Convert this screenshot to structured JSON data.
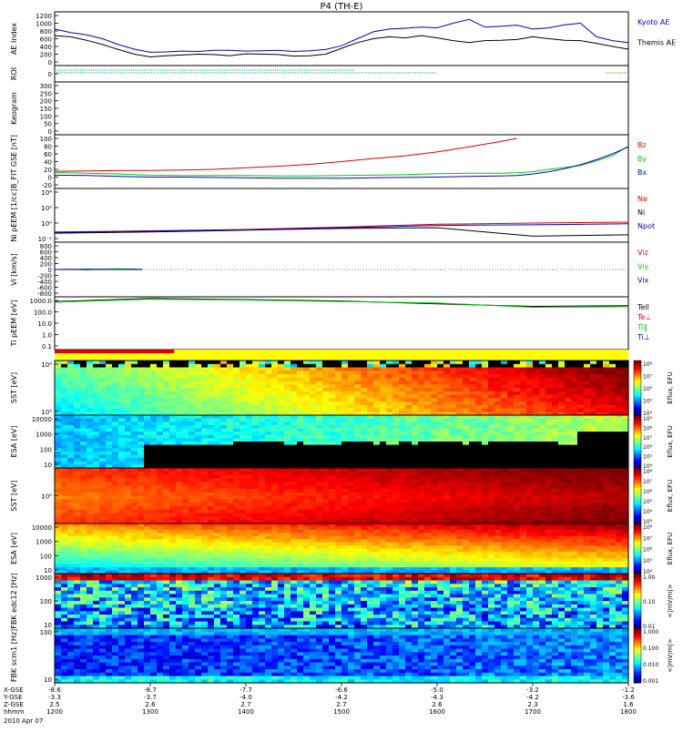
{
  "title": "P4 (TH-E)",
  "footer": {
    "rows": [
      {
        "label": "X-GSE",
        "values": [
          "-8.6",
          "-8.7",
          "-7.7",
          "-6.6",
          "-5.0",
          "-3.2",
          "-1.2"
        ]
      },
      {
        "label": "Y-GSE",
        "values": [
          "-3.3",
          "-3.7",
          "-4.0",
          "-4.2",
          "-4.3",
          "-4.2",
          "-3.6"
        ]
      },
      {
        "label": "Z-GSE",
        "values": [
          "2.5",
          "2.6",
          "2.7",
          "2.7",
          "2.6",
          "2.3",
          "1.6"
        ]
      },
      {
        "label": "hhmm",
        "values": [
          "1200",
          "1300",
          "1400",
          "1500",
          "1600",
          "1700",
          "1800"
        ]
      }
    ],
    "date": "2010 Apr 07"
  },
  "colors": {
    "kyoto": "#0000cc",
    "themis": "#000000",
    "red": "#dd0000",
    "green": "#00cc00",
    "blue": "#0000cc",
    "bar_red": "#dd0000",
    "bar_yellow": "#ffff00"
  },
  "chart_data": [
    {
      "type": "line",
      "id": "ae",
      "ylabel": "AE Index",
      "ylim": [
        0,
        1200
      ],
      "yticks": [
        "0",
        "200",
        "400",
        "600",
        "800",
        "1000",
        "1200"
      ],
      "x": [
        1200,
        1210,
        1220,
        1230,
        1240,
        1250,
        1300,
        1310,
        1320,
        1330,
        1340,
        1350,
        1400,
        1410,
        1420,
        1430,
        1440,
        1450,
        1500,
        1510,
        1520,
        1530,
        1540,
        1550,
        1600,
        1610,
        1620,
        1630,
        1640,
        1650,
        1700,
        1710,
        1720,
        1730,
        1740,
        1750,
        1800
      ],
      "series": [
        {
          "name": "Kyoto AE",
          "color": "#0000cc",
          "values": [
            850,
            760,
            700,
            600,
            450,
            330,
            250,
            260,
            280,
            270,
            300,
            300,
            280,
            290,
            300,
            270,
            290,
            320,
            420,
            600,
            780,
            850,
            870,
            900,
            880,
            1000,
            1100,
            900,
            920,
            950,
            850,
            880,
            960,
            1000,
            650,
            550,
            500
          ]
        },
        {
          "name": "Themis AE",
          "color": "#000000",
          "values": [
            680,
            650,
            560,
            450,
            320,
            200,
            130,
            160,
            180,
            200,
            190,
            160,
            210,
            200,
            190,
            150,
            160,
            200,
            350,
            500,
            600,
            650,
            620,
            680,
            620,
            550,
            500,
            550,
            560,
            580,
            650,
            600,
            560,
            550,
            480,
            400,
            330
          ]
        }
      ]
    },
    {
      "type": "line",
      "id": "roi",
      "ylabel": "ROI",
      "yticks": [
        "0"
      ]
    },
    {
      "type": "line",
      "id": "keogram",
      "ylabel": "Keogram",
      "ylim": [
        0,
        300
      ],
      "yticks": [
        "0",
        "50",
        "100",
        "150",
        "200",
        "250",
        "300"
      ]
    },
    {
      "type": "line",
      "id": "bfield",
      "ylabel": "B_FIT GSE [nT]",
      "ylim": [
        -20,
        100
      ],
      "yticks": [
        "-20",
        "0",
        "20",
        "40",
        "60",
        "80",
        "100"
      ],
      "x": [
        1200,
        1220,
        1240,
        1300,
        1320,
        1340,
        1400,
        1420,
        1440,
        1500,
        1520,
        1540,
        1600,
        1620,
        1640,
        1650,
        1700,
        1710,
        1720,
        1730,
        1740,
        1750,
        1800
      ],
      "series": [
        {
          "name": "Bz",
          "color": "#dd0000",
          "values": [
            15,
            16,
            17,
            17,
            18,
            20,
            24,
            28,
            33,
            40,
            48,
            55,
            65,
            78,
            92,
            100,
            null,
            null,
            null,
            null,
            null,
            null,
            null
          ]
        },
        {
          "name": "By",
          "color": "#00cc00",
          "values": [
            12,
            10,
            8,
            5,
            4,
            4,
            4,
            3,
            3,
            4,
            5,
            6,
            9,
            10,
            10,
            11,
            14,
            20,
            25,
            30,
            42,
            55,
            80
          ]
        },
        {
          "name": "Bx",
          "color": "#0000cc",
          "values": [
            5,
            4,
            2,
            0,
            0,
            -1,
            -2,
            -3,
            -3,
            -3,
            -2,
            -1,
            0,
            2,
            3,
            4,
            8,
            14,
            22,
            32,
            45,
            60,
            78
          ]
        }
      ]
    },
    {
      "type": "line",
      "id": "density",
      "ylabel": "Ni pEEM [1/cc]",
      "ylog": true,
      "yticks": [
        "10⁻²",
        "10⁰",
        "10²",
        "10⁴"
      ],
      "x": [
        1200,
        1300,
        1400,
        1500,
        1600,
        1700,
        1800
      ],
      "series": [
        {
          "name": "Ne",
          "color": "#dd0000",
          "values": [
            0.07,
            0.1,
            0.15,
            0.3,
            0.7,
            1.0,
            1.3
          ]
        },
        {
          "name": "Ni",
          "color": "#000000",
          "values": [
            0.05,
            0.07,
            0.12,
            0.2,
            0.25,
            0.02,
            0.03
          ]
        },
        {
          "name": "Npot",
          "color": "#0000cc",
          "values": [
            0.06,
            0.09,
            0.13,
            0.25,
            0.5,
            0.6,
            0.8
          ]
        }
      ]
    },
    {
      "type": "line",
      "id": "velocity",
      "ylabel": "Vi [km/s]",
      "ylim": [
        -800,
        800
      ],
      "yticks": [
        "-800",
        "-600",
        "-400",
        "-200",
        "0",
        "200",
        "400",
        "600",
        "800"
      ],
      "x": [
        1200,
        1210,
        1220,
        1230,
        1240,
        1250,
        1255
      ],
      "series": [
        {
          "name": "Viz",
          "color": "#dd0000",
          "values": [
            0,
            5,
            -5,
            10,
            0,
            5,
            0
          ]
        },
        {
          "name": "Viy",
          "color": "#00cc00",
          "values": [
            0,
            10,
            20,
            15,
            25,
            20,
            10
          ]
        },
        {
          "name": "Vix",
          "color": "#0000cc",
          "values": [
            0,
            0,
            0,
            0,
            0,
            0,
            0
          ]
        }
      ]
    },
    {
      "type": "line",
      "id": "temperature",
      "ylabel": "Ti pEEM [eV]",
      "ylog": true,
      "yticks": [
        "0.1",
        "1.0",
        "10.0",
        "100.0",
        "1000.0"
      ],
      "x": [
        1200,
        1300,
        1400,
        1500,
        1600,
        1700,
        1800
      ],
      "series": [
        {
          "name": "Tell",
          "color": "#000000",
          "values": [
            800,
            1500,
            1200,
            900,
            500,
            300,
            350
          ]
        },
        {
          "name": "Te⊥",
          "color": "#dd0000",
          "values": [
            null,
            null,
            null,
            null,
            null,
            null,
            null
          ]
        },
        {
          "name": "Ti∥",
          "color": "#00cc00",
          "values": [
            700,
            1300,
            1100,
            800,
            600,
            250,
            280
          ]
        },
        {
          "name": "Ti⊥",
          "color": "#0000cc",
          "values": [
            null,
            null,
            null,
            null,
            null,
            null,
            null
          ]
        }
      ]
    },
    {
      "type": "heatmap",
      "id": "sst_e",
      "ylabel": "SST [eV]",
      "yticks": [
        "10⁵",
        "10⁶"
      ],
      "cbar_label": "Eflux, EFU",
      "cbar_ticks": [
        "10⁴",
        "10⁵",
        "10⁶",
        "10⁷",
        "10⁸"
      ]
    },
    {
      "type": "heatmap",
      "id": "esa_e",
      "ylabel": "ESA [eV]",
      "yticks": [
        "10",
        "100",
        "1000",
        "10000"
      ],
      "cbar_label": "Eflux, EFU",
      "cbar_ticks": [
        "10⁴",
        "10⁵",
        "10⁶",
        "10⁷",
        "10⁸",
        "10⁹"
      ]
    },
    {
      "type": "heatmap",
      "id": "sst_i",
      "ylabel": "SST [eV]",
      "yticks": [
        "10⁵"
      ],
      "cbar_label": "Eflux, EFU",
      "cbar_ticks": [
        "10³",
        "10⁴",
        "10⁵",
        "10⁶",
        "10⁷",
        "10⁸"
      ]
    },
    {
      "type": "heatmap",
      "id": "esa_i",
      "ylabel": "ESA [eV]",
      "yticks": [
        "10",
        "100",
        "1000",
        "10000"
      ],
      "cbar_label": "Eflux, EFU",
      "cbar_ticks": [
        "10⁴",
        "10⁵",
        "10⁶",
        "10⁷",
        "10⁸"
      ]
    },
    {
      "type": "heatmap",
      "id": "fbk_e",
      "ylabel": "FBK edc12 [Hz]",
      "yticks": [
        "10",
        "100",
        "1000"
      ],
      "cbar_label": "<|mV/m|>",
      "cbar_ticks": [
        "0.01",
        "0.10",
        "1.00"
      ]
    },
    {
      "type": "heatmap",
      "id": "fbk_b",
      "ylabel": "FBK scm1 [Hz]",
      "yticks": [
        "10",
        "100"
      ],
      "cbar_label": "<|mV/m|>",
      "cbar_ticks": [
        "0.001",
        "0.010",
        "0.100",
        "1.000"
      ]
    }
  ]
}
